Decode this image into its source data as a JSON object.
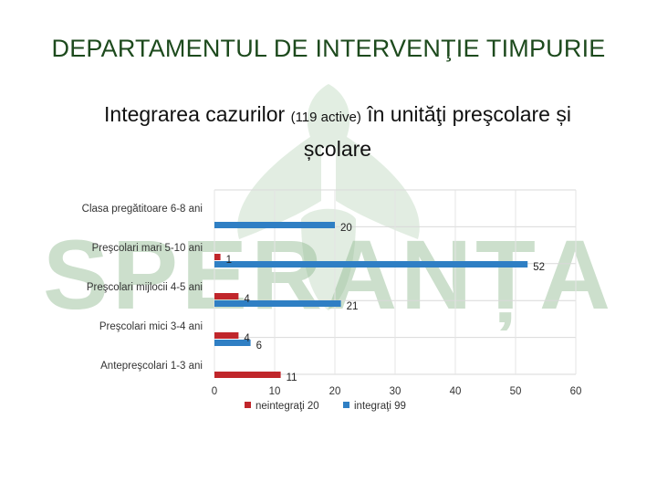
{
  "header": {
    "title": "DEPARTAMENTUL DE INTERVENŢIE TIMPURIE",
    "chart_heading_main": "Integrarea cazurilor",
    "chart_heading_small": "(119 active)",
    "chart_heading_rest": "în unităţi preşcolare și",
    "chart_heading_line2": "școlare"
  },
  "watermark": {
    "text": "SPERANȚA",
    "color": "#8fb98f"
  },
  "chart_data": {
    "type": "bar",
    "orientation": "horizontal",
    "categories": [
      "Clasa pregătitoare 6-8 ani",
      "Preşcolari mari 5-10 ani",
      "Preşcolari mijlocii 4-5 ani",
      "Preşcolari mici 3-4 ani",
      "Antepreşcolari 1-3 ani"
    ],
    "series": [
      {
        "name": "neintegraţi 20",
        "color": "#c0262b",
        "values": [
          null,
          1,
          4,
          4,
          11
        ]
      },
      {
        "name": "integraţi 99",
        "color": "#2f7fc4",
        "values": [
          20,
          52,
          21,
          6,
          null
        ]
      }
    ],
    "xlim": [
      0,
      60
    ],
    "xticks": [
      0,
      10,
      20,
      30,
      40,
      50,
      60
    ],
    "grid": true,
    "legend_position": "bottom"
  }
}
